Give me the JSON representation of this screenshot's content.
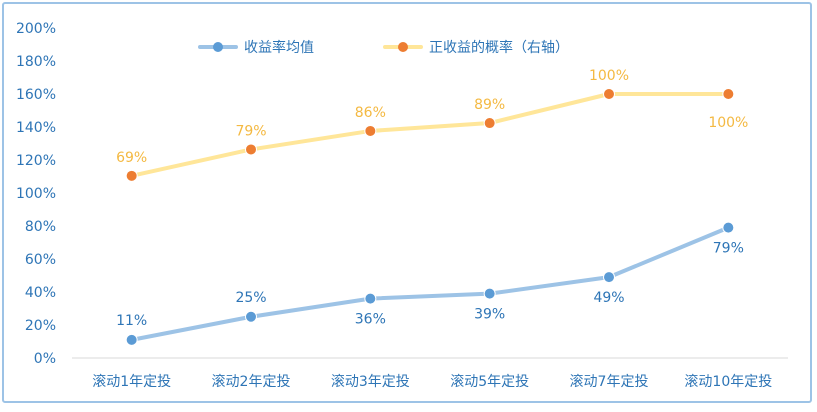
{
  "chart_data": {
    "type": "line",
    "categories": [
      "滚动1年定投",
      "滚动2年定投",
      "滚动3年定投",
      "滚动5年定投",
      "滚动7年定投",
      "滚动10年定投"
    ],
    "y_ticks": [
      "0%",
      "20%",
      "40%",
      "60%",
      "80%",
      "100%",
      "120%",
      "140%",
      "160%",
      "180%",
      "200%"
    ],
    "ylim": [
      0,
      200
    ],
    "grid": false,
    "legend_position": "top",
    "series": [
      {
        "name": "收益率均值",
        "values": [
          11,
          25,
          36,
          39,
          49,
          79
        ],
        "labels": [
          "11%",
          "25%",
          "36%",
          "39%",
          "49%",
          "79%"
        ],
        "line_color": "#9dc3e6",
        "marker_color": "#5b9bd5",
        "label_color": "#2e75b6",
        "axis": "left"
      },
      {
        "name": "正收益的概率（右轴）",
        "values": [
          69,
          79,
          86,
          89,
          100,
          100
        ],
        "labels": [
          "69%",
          "79%",
          "86%",
          "89%",
          "100%",
          "100%"
        ],
        "line_color": "#ffe699",
        "marker_color": "#ed7d31",
        "label_color": "#f4b942",
        "axis": "right"
      }
    ],
    "border_color": "#9dc3e6",
    "axis_label_color": "#2e75b6"
  }
}
